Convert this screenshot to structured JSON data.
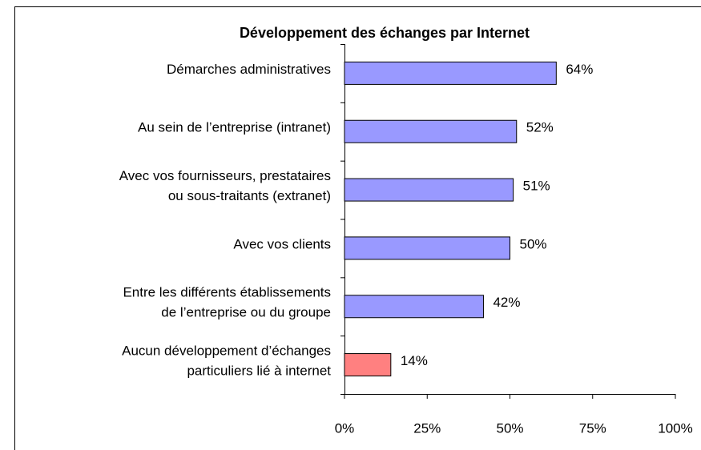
{
  "chart_data": {
    "type": "barh",
    "title": "Développement des échanges  par Internet",
    "categories": [
      [
        "Démarches administratives"
      ],
      [
        "Au sein de l’entreprise (intranet)"
      ],
      [
        "Avec vos fournisseurs, prestataires",
        "ou sous-traitants (extranet)"
      ],
      [
        "Avec vos clients"
      ],
      [
        "Entre les différents établissements",
        "de l’entreprise ou du groupe"
      ],
      [
        "Aucun développement d’échanges",
        "particuliers lié à internet"
      ]
    ],
    "values": [
      64,
      52,
      51,
      50,
      42,
      14
    ],
    "value_labels": [
      "64%",
      "52%",
      "51%",
      "50%",
      "42%",
      "14%"
    ],
    "colors": [
      "#9999ff",
      "#9999ff",
      "#9999ff",
      "#9999ff",
      "#9999ff",
      "#ff8080"
    ],
    "xlim": [
      0,
      100
    ],
    "xticks": [
      {
        "value": 0,
        "label": "0%"
      },
      {
        "value": 25,
        "label": "25%"
      },
      {
        "value": 50,
        "label": "50%"
      },
      {
        "value": 75,
        "label": "75%"
      },
      {
        "value": 100,
        "label": "100%"
      }
    ]
  }
}
